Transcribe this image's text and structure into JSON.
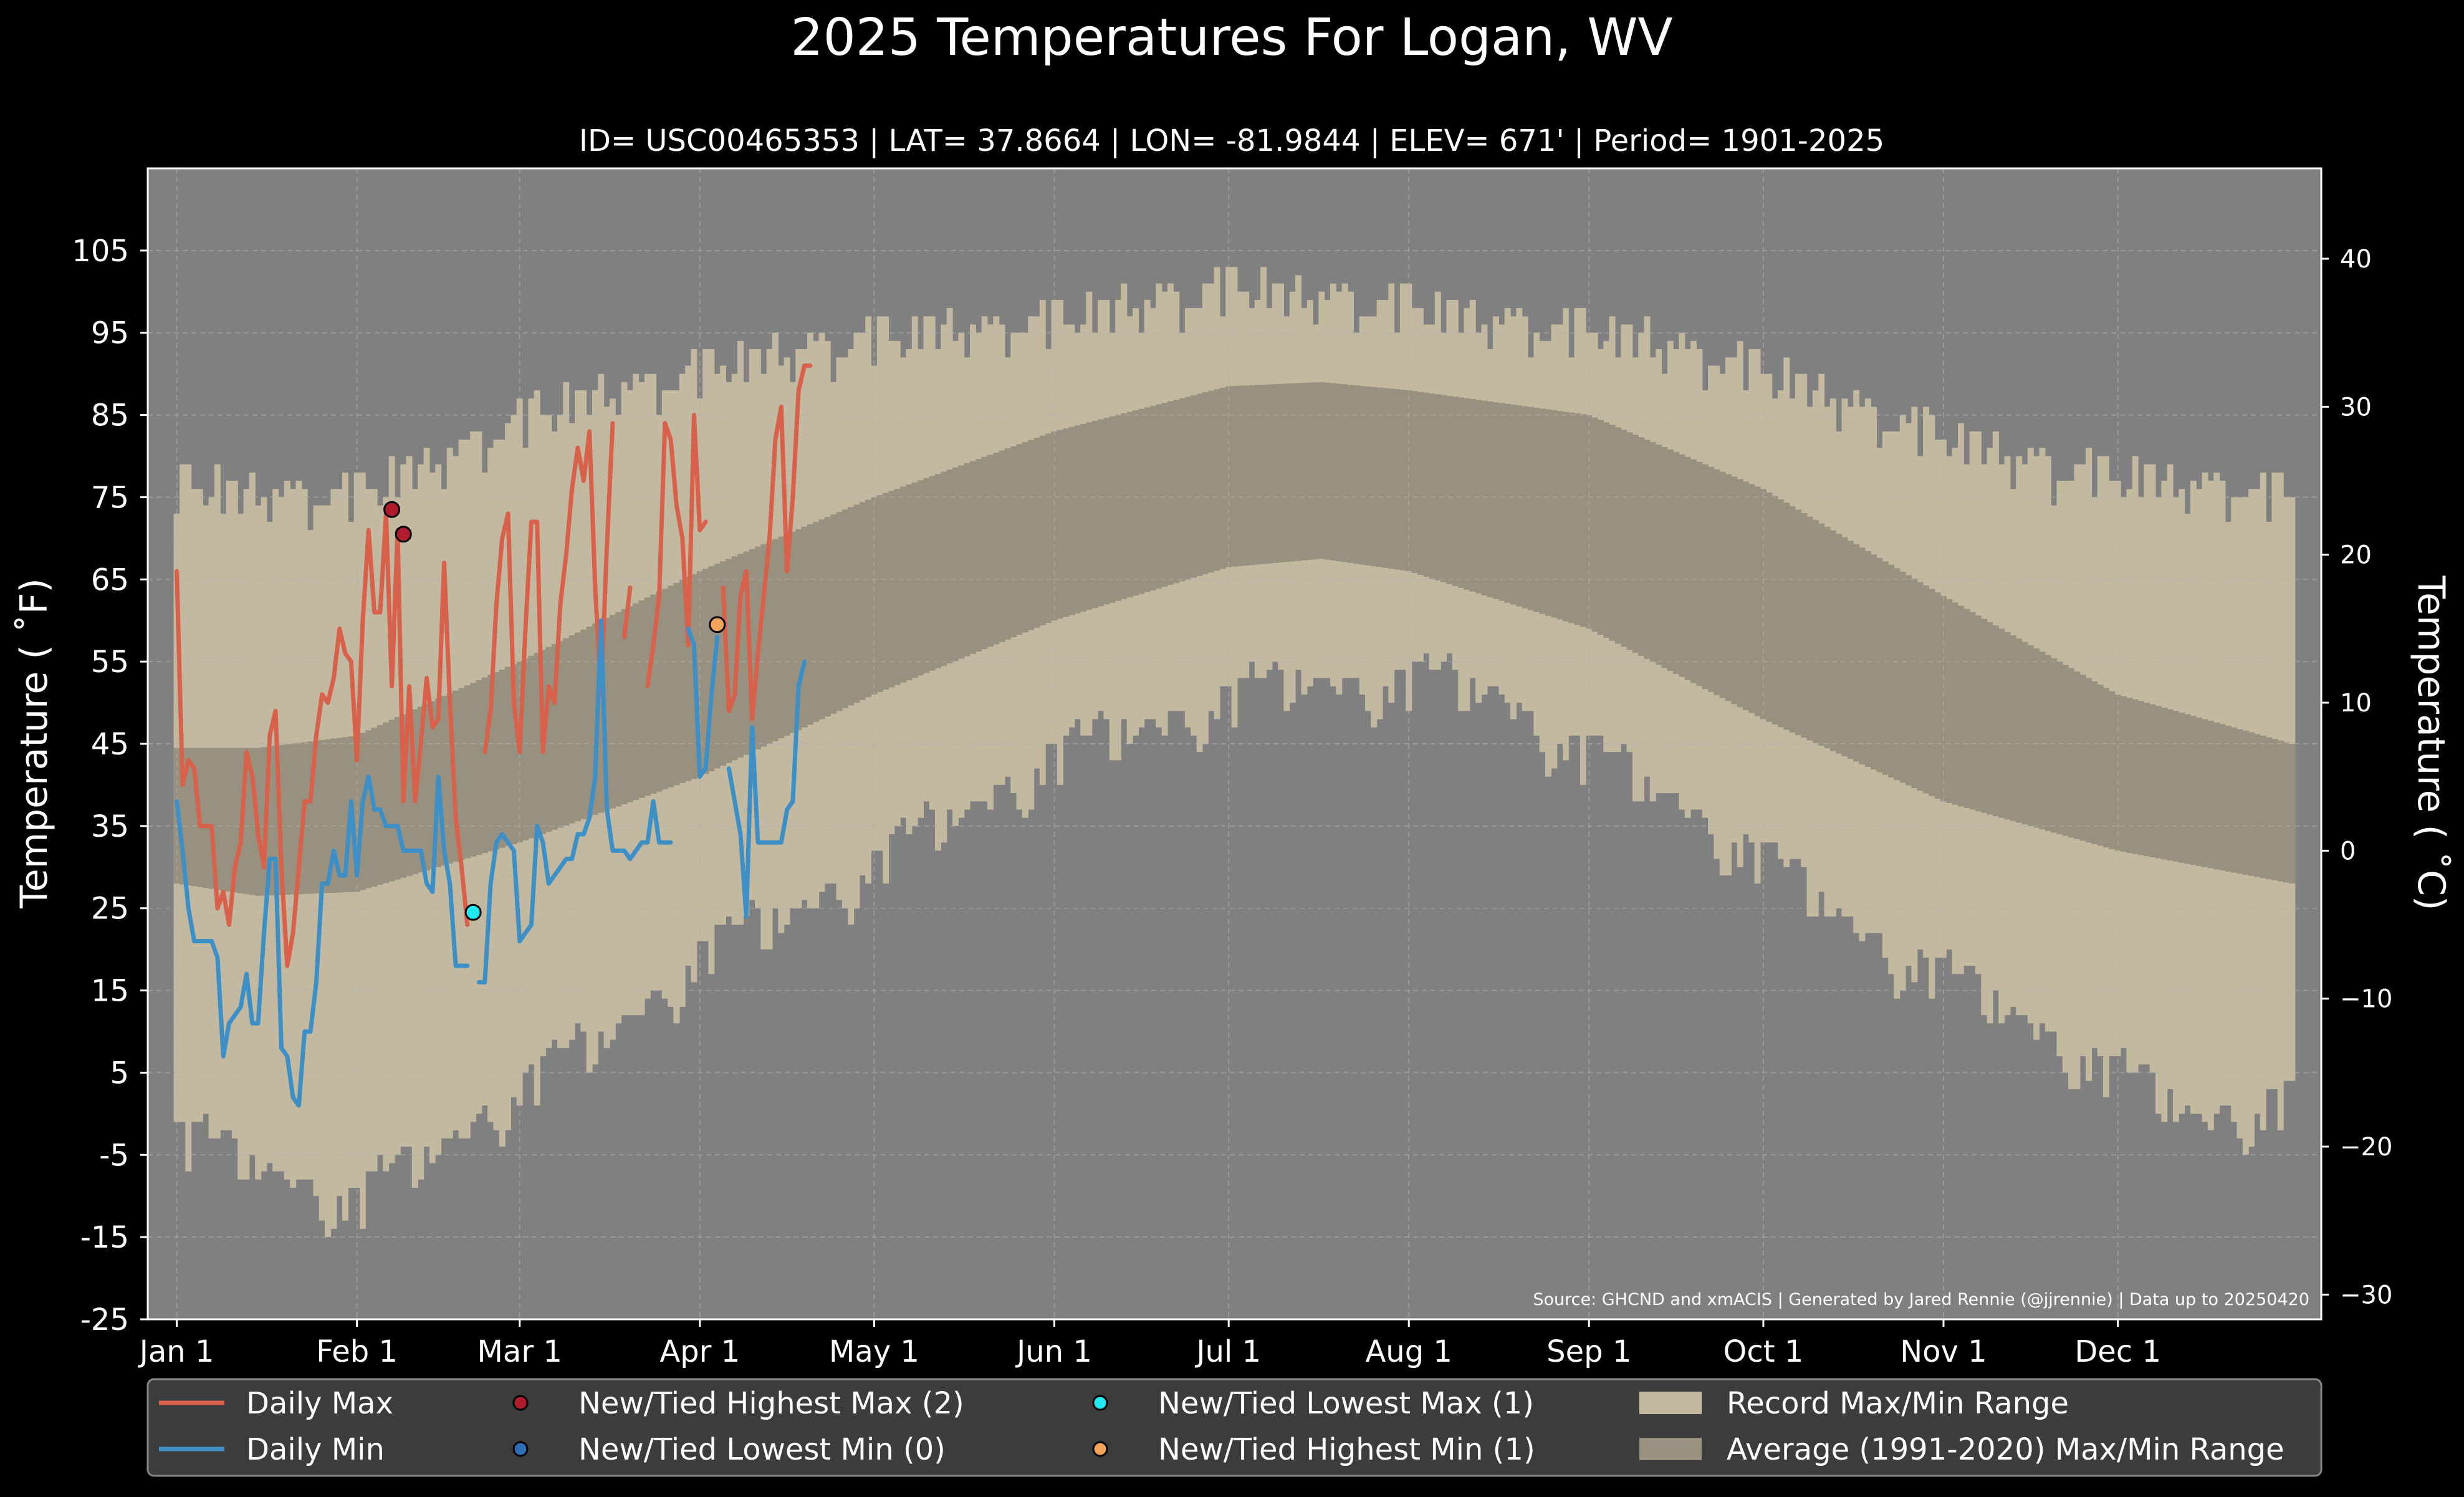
{
  "chart_data": {
    "type": "line",
    "title": "2025 Temperatures For Logan, WV",
    "subtitle": "ID= USC00465353 | LAT= 37.8664 | LON= -81.9844 | ELEV= 671' | Period= 1901-2025",
    "ylabel_left": "Temperature ( $^\\circ$F)",
    "ylabel_left_display": "Temperature ( ˚F)",
    "ylabel_right_display": "Temperature ( ˚C)",
    "source": "Source: GHCND and xmACIS | Generated by Jared Rennie (@jjrennie) | Data up to 20250420",
    "ylim": [
      -25,
      115
    ],
    "ylim_celsius": [
      -31.67,
      46.11
    ],
    "y_ticks": [
      -25,
      -15,
      -5,
      5,
      15,
      25,
      35,
      45,
      55,
      65,
      75,
      85,
      95,
      105
    ],
    "y_tick_labels": [
      "-25",
      "-15",
      "-5",
      "5",
      "15",
      "25",
      "35",
      "45",
      "55",
      "65",
      "75",
      "85",
      "95",
      "105"
    ],
    "y2_ticks": [
      -30,
      -20,
      -10,
      0,
      10,
      20,
      30,
      40
    ],
    "y2_tick_labels": [
      "−30",
      "−20",
      "−10",
      "0",
      "10",
      "20",
      "30",
      "40"
    ],
    "x_ticks": [
      1,
      32,
      60,
      91,
      121,
      152,
      182,
      213,
      244,
      274,
      305,
      335
    ],
    "x_tick_labels": [
      "Jan 1",
      "Feb 1",
      "Mar 1",
      "Apr 1",
      "May 1",
      "Jun 1",
      "Jul 1",
      "Aug 1",
      "Sep 1",
      "Oct 1",
      "Nov 1",
      "Dec 1"
    ],
    "xlim": [
      -4,
      370
    ],
    "grid": true,
    "legend_position": "bottom",
    "colors": {
      "background": "#000000",
      "plot_background": "#808080",
      "record_range": "#c2b9a0",
      "average_range": "#99917f",
      "daily_max": "#d8614c",
      "daily_min": "#3d8fc6",
      "highest_max_marker": "#b01c2e",
      "lowest_min_marker": "#2f6db5",
      "lowest_max_marker": "#22e8f0",
      "highest_min_marker": "#f4a45a",
      "legend_bg": "#3c3c3c"
    },
    "legend": [
      {
        "label": "Daily Max",
        "kind": "line",
        "color": "#d8614c"
      },
      {
        "label": "New/Tied Highest Max (2)",
        "kind": "marker",
        "color": "#b01c2e"
      },
      {
        "label": "New/Tied Lowest Max (1)",
        "kind": "marker",
        "color": "#22e8f0"
      },
      {
        "label": "Record Max/Min Range",
        "kind": "patch",
        "color": "#c2b9a0"
      },
      {
        "label": "Daily Min",
        "kind": "line",
        "color": "#3d8fc6"
      },
      {
        "label": "New/Tied Lowest Min (0)",
        "kind": "marker",
        "color": "#2f6db5"
      },
      {
        "label": "New/Tied Highest Min (1)",
        "kind": "marker",
        "color": "#f4a45a"
      },
      {
        "label": "Average (1991-2020) Max/Min Range",
        "kind": "patch",
        "color": "#99917f"
      }
    ],
    "record_max_monthly": {
      "x": [
        1,
        15,
        32,
        46,
        60,
        74,
        91,
        105,
        121,
        136,
        152,
        166,
        182,
        196,
        213,
        227,
        244,
        258,
        274,
        288,
        305,
        319,
        335,
        349,
        365
      ],
      "values": [
        77,
        76,
        76,
        80,
        85,
        88,
        91,
        93,
        95,
        96,
        97,
        99,
        101,
        100,
        99,
        97,
        96,
        94,
        91,
        87,
        83,
        80,
        78,
        77,
        76
      ]
    },
    "record_max_noise": [
      2,
      0,
      -2,
      -3,
      1,
      -1,
      0,
      -4,
      2,
      -2,
      1,
      0,
      -3,
      -1,
      2,
      -2,
      0,
      1,
      -5,
      -2,
      1,
      2,
      -1,
      0,
      -3,
      -2,
      2,
      0,
      -1,
      -4
    ],
    "record_min_monthly": {
      "x": [
        1,
        15,
        32,
        46,
        60,
        74,
        91,
        105,
        121,
        136,
        152,
        166,
        182,
        196,
        213,
        227,
        244,
        258,
        274,
        288,
        305,
        319,
        335,
        349,
        365
      ],
      "values": [
        -2,
        -6,
        -10,
        -4,
        4,
        9,
        20,
        24,
        31,
        37,
        44,
        47,
        51,
        53,
        53,
        52,
        44,
        39,
        31,
        24,
        17,
        12,
        5,
        0,
        2
      ]
    },
    "record_min_noise": [
      -3,
      2,
      0,
      -4,
      1,
      -2,
      3,
      0,
      -5,
      2,
      -1,
      1,
      -3,
      0,
      2,
      -2,
      -4,
      1,
      0,
      -1,
      3,
      -2,
      1,
      -3,
      0,
      2,
      -1,
      -6,
      1,
      0
    ],
    "average_max": {
      "x": [
        1,
        15,
        32,
        60,
        91,
        121,
        152,
        182,
        198,
        213,
        244,
        274,
        305,
        335,
        365
      ],
      "values": [
        44.5,
        44.5,
        46,
        55,
        66,
        75,
        83,
        88.5,
        89,
        88,
        85,
        76,
        63,
        51,
        45
      ]
    },
    "average_min": {
      "x": [
        1,
        15,
        32,
        60,
        91,
        121,
        152,
        182,
        198,
        213,
        244,
        274,
        305,
        335,
        365
      ],
      "values": [
        28,
        26.5,
        27,
        33,
        41,
        51,
        60,
        66.5,
        67.5,
        66,
        59,
        48,
        38,
        32,
        28
      ]
    },
    "daily_max": {
      "x": [
        1,
        2,
        3,
        4,
        5,
        6,
        7,
        8,
        9,
        10,
        11,
        12,
        13,
        14,
        15,
        16,
        17,
        18,
        19,
        20,
        21,
        22,
        23,
        24,
        25,
        26,
        27,
        28,
        29,
        30,
        31,
        32,
        33,
        34,
        35,
        36,
        37,
        38,
        39,
        40,
        41,
        42,
        43,
        44,
        45,
        46,
        47,
        48,
        49,
        50,
        51,
        52,
        53,
        54,
        55,
        56,
        57,
        58,
        59,
        60,
        61,
        62,
        63,
        64,
        65,
        66,
        67,
        68,
        69,
        70,
        71,
        72,
        73,
        74,
        75,
        76,
        77,
        78,
        79,
        80,
        81,
        82,
        83,
        84,
        85,
        86,
        87,
        88,
        89,
        90,
        91,
        92,
        93,
        94,
        95,
        96,
        97,
        98,
        99,
        100,
        101,
        102,
        103,
        104,
        105,
        106,
        107,
        108,
        109,
        110
      ],
      "values": [
        66,
        40,
        43,
        42,
        35,
        35,
        35,
        25,
        27,
        23,
        30,
        33,
        44,
        41,
        34,
        30,
        46,
        49,
        30,
        18,
        22,
        30,
        38,
        38,
        46,
        51,
        50,
        53,
        59,
        56,
        55,
        43,
        60,
        71,
        61,
        61,
        73,
        52,
        71,
        38,
        52,
        38,
        45,
        53,
        47,
        48,
        67,
        50,
        36,
        30,
        23,
        null,
        null,
        44,
        49,
        62,
        70,
        73,
        50,
        44,
        59,
        72,
        72,
        44,
        52,
        50,
        62,
        68,
        76,
        81,
        77,
        83,
        64,
        51,
        69,
        84,
        null,
        58,
        64,
        null,
        null,
        52,
        57,
        63,
        84,
        82,
        74,
        70,
        57,
        85,
        71,
        72,
        null,
        null,
        null,
        null,
        null,
        null,
        null,
        null,
        null,
        null,
        null,
        null,
        null,
        null,
        null,
        null,
        null,
        null
      ],
      "note": "max series continues after gap below"
    },
    "daily_max_tail": {
      "x": [
        93,
        94,
        95,
        96,
        97,
        98,
        99,
        100,
        101,
        102,
        103,
        104,
        105,
        106,
        107,
        108,
        109,
        110
      ],
      "values": [
        null,
        null,
        64,
        49,
        51,
        63,
        66,
        48,
        56,
        63,
        70,
        82,
        86,
        66,
        75,
        88,
        91,
        91
      ]
    },
    "daily_min": {
      "x": [
        1,
        2,
        3,
        4,
        5,
        6,
        7,
        8,
        9,
        10,
        11,
        12,
        13,
        14,
        15,
        16,
        17,
        18,
        19,
        20,
        21,
        22,
        23,
        24,
        25,
        26,
        27,
        28,
        29,
        30,
        31,
        32,
        33,
        34,
        35,
        36,
        37,
        38,
        39,
        40,
        41,
        42,
        43,
        44,
        45,
        46,
        47,
        48,
        49,
        50,
        51,
        52,
        53,
        54,
        55,
        56,
        57,
        58,
        59,
        60,
        61,
        62,
        63,
        64,
        65,
        66,
        67,
        68,
        69,
        70,
        71,
        72,
        73,
        74,
        75,
        76,
        77,
        78,
        79,
        80,
        81,
        82,
        83,
        84,
        85,
        86,
        87,
        88,
        89,
        90
      ],
      "values": [
        38,
        32,
        25,
        21,
        21,
        21,
        21,
        19,
        7,
        11,
        12,
        13,
        17,
        11,
        11,
        22,
        31,
        31,
        8,
        7,
        2,
        1,
        10,
        10,
        16,
        28,
        28,
        32,
        29,
        29,
        38,
        29,
        38,
        41,
        37,
        37,
        35,
        35,
        35,
        32,
        32,
        32,
        32,
        28,
        27,
        41,
        32,
        28,
        18,
        18,
        18,
        null,
        16,
        16,
        28,
        33,
        34,
        33,
        32,
        21,
        22,
        23,
        35,
        33,
        28,
        29,
        30,
        31,
        31,
        34,
        34,
        36,
        41,
        60,
        37,
        32,
        32,
        32,
        31,
        32,
        33,
        33,
        38,
        33,
        33,
        33,
        null,
        null,
        null,
        null
      ]
    },
    "daily_min_tail": {
      "x": [
        89,
        90,
        91,
        92,
        93,
        94,
        95,
        96,
        97,
        98,
        99,
        100,
        101,
        102,
        103,
        104,
        105,
        106,
        107,
        108,
        109,
        110
      ],
      "values": [
        59,
        57,
        41,
        42,
        51,
        58,
        null,
        42,
        38,
        34,
        24,
        47,
        33,
        33,
        33,
        33,
        33,
        37,
        38,
        52,
        55,
        null
      ]
    },
    "record_points": [
      {
        "label": "New/Tied Highest Max",
        "x": 38,
        "y": 73.5,
        "color": "#b01c2e"
      },
      {
        "label": "New/Tied Highest Max",
        "x": 40,
        "y": 70.5,
        "color": "#b01c2e"
      },
      {
        "label": "New/Tied Lowest Max",
        "x": 52,
        "y": 24.5,
        "color": "#22e8f0"
      },
      {
        "label": "New/Tied Highest Min",
        "x": 94,
        "y": 59.5,
        "color": "#f4a45a"
      }
    ]
  }
}
